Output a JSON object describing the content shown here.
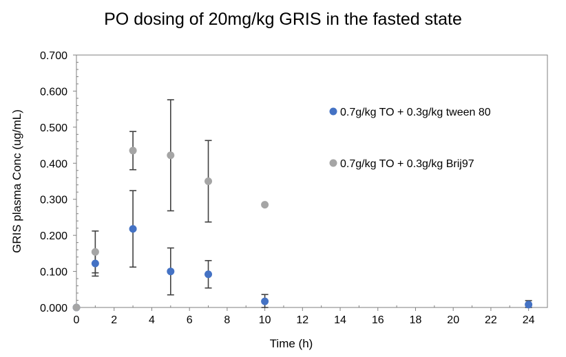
{
  "chart_data": {
    "type": "scatter",
    "title": "PO dosing of 20mg/kg GRIS in the fasted state",
    "xlabel": "Time (h)",
    "ylabel": "GRIS plasma Conc (ug/mL)",
    "xlim": [
      0,
      25
    ],
    "ylim": [
      0,
      0.7
    ],
    "xticks": [
      0,
      2,
      4,
      6,
      8,
      10,
      12,
      14,
      16,
      18,
      20,
      22,
      24
    ],
    "xtick_labels": [
      "0",
      "2",
      "4",
      "6",
      "8",
      "10",
      "12",
      "14",
      "16",
      "18",
      "20",
      "22",
      "24"
    ],
    "yticks": [
      0,
      0.1,
      0.2,
      0.3,
      0.4,
      0.5,
      0.6,
      0.7
    ],
    "ytick_labels": [
      "0.000",
      "0.100",
      "0.200",
      "0.300",
      "0.400",
      "0.500",
      "0.600",
      "0.700"
    ],
    "grid": false,
    "legend_position": "inside-right",
    "series": [
      {
        "name": "0.7g/kg TO + 0.3g/kg tween 80",
        "color": "#4472c4",
        "points": [
          {
            "x": 0,
            "y": 0.0
          },
          {
            "x": 1,
            "y": 0.122,
            "err": 0.035
          },
          {
            "x": 3,
            "y": 0.218,
            "err": 0.106
          },
          {
            "x": 5,
            "y": 0.1,
            "err": 0.065
          },
          {
            "x": 7,
            "y": 0.092,
            "err": 0.038
          },
          {
            "x": 10,
            "y": 0.017,
            "err": 0.019
          },
          {
            "x": 24,
            "y": 0.008,
            "err": 0.011
          }
        ]
      },
      {
        "name": "0.7g/kg TO + 0.3g/kg Brij97",
        "color": "#a5a5a5",
        "points": [
          {
            "x": 0,
            "y": 0.0
          },
          {
            "x": 1,
            "y": 0.154,
            "err": 0.058
          },
          {
            "x": 3,
            "y": 0.435,
            "err": 0.053
          },
          {
            "x": 5,
            "y": 0.422,
            "err": 0.154
          },
          {
            "x": 7,
            "y": 0.35,
            "err": 0.113
          },
          {
            "x": 10,
            "y": 0.285
          }
        ]
      }
    ]
  }
}
